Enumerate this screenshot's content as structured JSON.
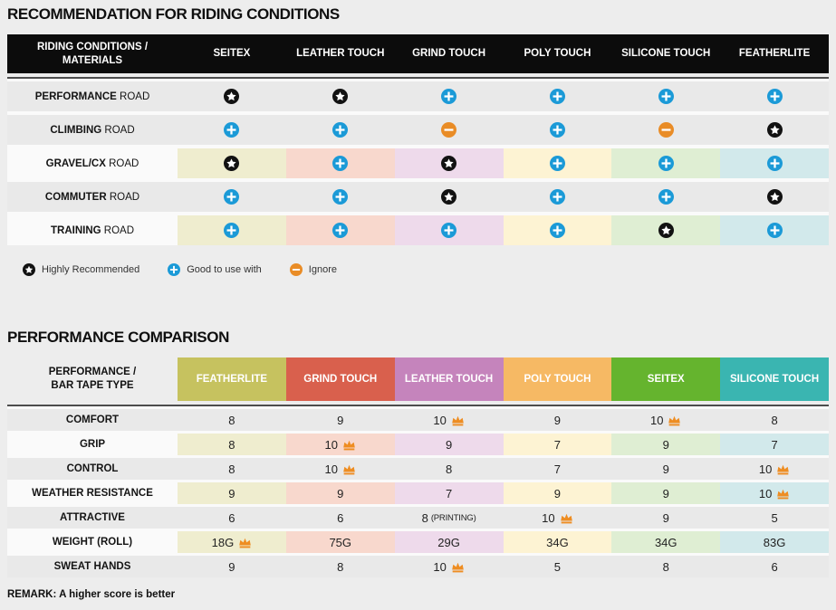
{
  "colors": {
    "page_background": "#ededed",
    "table1_header_bg": "#0c0c0c",
    "corner_header_bg": "#d9d9d9",
    "separator": "#4d4d4d",
    "row_gray": "#e9e9e9",
    "row_white": "#fafafa",
    "icon_plus": "#1b9ad7",
    "icon_minus": "#e98c26",
    "icon_star": "#121212",
    "icon_crown": "#ee8d22",
    "column_colors": [
      "#c6c25f",
      "#d9604d",
      "#c584bc",
      "#f6b964",
      "#65b42e",
      "#3ab5b1"
    ],
    "column_tints": [
      "#efedcf",
      "#f8d8cd",
      "#eedaeb",
      "#fdf3d3",
      "#dfeed3",
      "#d2e9eb"
    ]
  },
  "recommendation": {
    "title": "RECOMMENDATION FOR RIDING CONDITIONS",
    "corner_header": "RIDING CONDITIONS /\nMATERIALS",
    "columns": [
      "SEITEX",
      "LEATHER TOUCH",
      "GRIND TOUCH",
      "POLY TOUCH",
      "SILICONE TOUCH",
      "FEATHERLITE"
    ],
    "rows": [
      {
        "label_bold": "PERFORMANCE",
        "label_rest": "ROAD",
        "tinted": false,
        "cells": [
          "star",
          "star",
          "plus",
          "plus",
          "plus",
          "plus"
        ]
      },
      {
        "label_bold": "CLIMBING",
        "label_rest": "ROAD",
        "tinted": false,
        "cells": [
          "plus",
          "plus",
          "minus",
          "plus",
          "minus",
          "star"
        ]
      },
      {
        "label_bold": "GRAVEL/CX",
        "label_rest": "ROAD",
        "tinted": true,
        "cells": [
          "star",
          "plus",
          "star",
          "plus",
          "plus",
          "plus"
        ]
      },
      {
        "label_bold": "COMMUTER",
        "label_rest": "ROAD",
        "tinted": false,
        "cells": [
          "plus",
          "plus",
          "star",
          "plus",
          "plus",
          "star"
        ]
      },
      {
        "label_bold": "TRAINING",
        "label_rest": "ROAD",
        "tinted": true,
        "cells": [
          "plus",
          "plus",
          "plus",
          "plus",
          "star",
          "plus"
        ]
      }
    ],
    "legend": [
      {
        "icon": "star",
        "label": "Highly Recommended"
      },
      {
        "icon": "plus",
        "label": "Good to use with"
      },
      {
        "icon": "minus",
        "label": "Ignore"
      }
    ]
  },
  "comparison": {
    "title": "PERFORMANCE COMPARISON",
    "corner_header": "PERFORMANCE /\nBAR TAPE TYPE",
    "columns": [
      "FEATHERLITE",
      "GRIND TOUCH",
      "LEATHER TOUCH",
      "POLY TOUCH",
      "SEITEX",
      "SILICONE TOUCH"
    ],
    "rows": [
      {
        "label": "COMFORT",
        "tinted": false,
        "cells": [
          {
            "value": "8"
          },
          {
            "value": "9"
          },
          {
            "value": "10",
            "crown": true
          },
          {
            "value": "9"
          },
          {
            "value": "10",
            "crown": true
          },
          {
            "value": "8"
          }
        ]
      },
      {
        "label": "GRIP",
        "tinted": true,
        "cells": [
          {
            "value": "8"
          },
          {
            "value": "10",
            "crown": true
          },
          {
            "value": "9"
          },
          {
            "value": "7"
          },
          {
            "value": "9"
          },
          {
            "value": "7"
          }
        ]
      },
      {
        "label": "CONTROL",
        "tinted": false,
        "cells": [
          {
            "value": "8"
          },
          {
            "value": "10",
            "crown": true
          },
          {
            "value": "8"
          },
          {
            "value": "7"
          },
          {
            "value": "9"
          },
          {
            "value": "10",
            "crown": true
          }
        ]
      },
      {
        "label": "WEATHER RESISTANCE",
        "tinted": true,
        "cells": [
          {
            "value": "9"
          },
          {
            "value": "9"
          },
          {
            "value": "7"
          },
          {
            "value": "9"
          },
          {
            "value": "9"
          },
          {
            "value": "10",
            "crown": true
          }
        ]
      },
      {
        "label": "ATTRACTIVE",
        "tinted": false,
        "cells": [
          {
            "value": "6"
          },
          {
            "value": "6"
          },
          {
            "value": "8",
            "suffix": "(PRINTING)"
          },
          {
            "value": "10",
            "crown": true
          },
          {
            "value": "9"
          },
          {
            "value": "5"
          }
        ]
      },
      {
        "label": "WEIGHT (ROLL)",
        "tinted": true,
        "cells": [
          {
            "value": "18G",
            "crown": true
          },
          {
            "value": "75G"
          },
          {
            "value": "29G"
          },
          {
            "value": "34G"
          },
          {
            "value": "34G"
          },
          {
            "value": "83G"
          }
        ]
      },
      {
        "label": "SWEAT HANDS",
        "tinted": false,
        "cells": [
          {
            "value": "9"
          },
          {
            "value": "8"
          },
          {
            "value": "10",
            "crown": true
          },
          {
            "value": "5"
          },
          {
            "value": "8"
          },
          {
            "value": "6"
          }
        ]
      }
    ],
    "remark": "REMARK: A higher score is better"
  }
}
